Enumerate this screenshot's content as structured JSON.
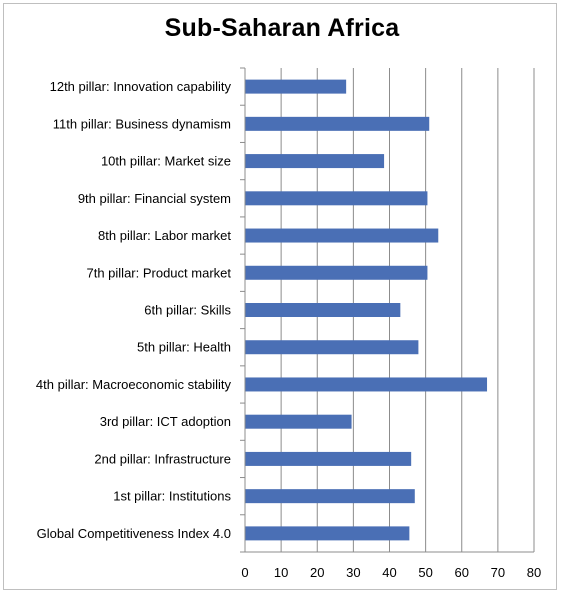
{
  "chart_data": {
    "type": "bar",
    "orientation": "horizontal",
    "title": "Sub-Saharan Africa",
    "xlabel": "",
    "ylabel": "",
    "xlim": [
      0,
      80
    ],
    "x_ticks": [
      0,
      10,
      20,
      30,
      40,
      50,
      60,
      70,
      80
    ],
    "grid": "vertical",
    "legend": "none",
    "bar_color": "#4a6fb5",
    "categories": [
      "12th pillar: Innovation capability",
      "11th pillar: Business dynamism",
      "10th pillar: Market size",
      "9th pillar: Financial system",
      "8th pillar: Labor market",
      "7th pillar: Product market",
      "6th pillar: Skills",
      "5th pillar: Health",
      "4th pillar: Macroeconomic stability",
      "3rd pillar: ICT adoption",
      "2nd pillar: Infrastructure",
      "1st pillar: Institutions",
      "Global Competitiveness Index 4.0"
    ],
    "values": [
      28,
      51,
      38.5,
      50.5,
      53.5,
      50.5,
      43,
      48,
      67,
      29.5,
      46,
      47,
      45.5
    ]
  }
}
